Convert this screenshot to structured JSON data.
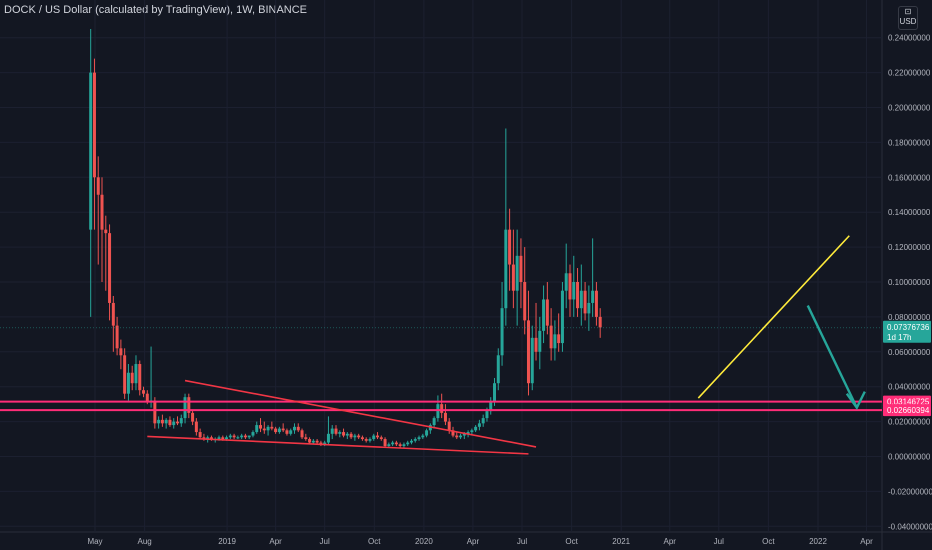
{
  "header": {
    "title": "DOCK / US Dollar (calculated by TradingView), 1W, BINANCE"
  },
  "unit": {
    "line1": "⊡",
    "line2": "USD"
  },
  "colors": {
    "background": "#131722",
    "up": "#26a69a",
    "down": "#ef5350",
    "trend_red": "#f23645",
    "trend_yellow": "#ffeb3b",
    "support_pink": "#ff2d78",
    "arrow": "#26a69a",
    "price_label": "#26a69a"
  },
  "chart_data": {
    "type": "candlestick",
    "title": "DOCK / US Dollar (calculated by TradingView), 1W, BINANCE",
    "y_axis": {
      "ticks": [
        "0.24000000",
        "0.22000000",
        "0.20000000",
        "0.18000000",
        "0.16000000",
        "0.14000000",
        "0.12000000",
        "0.10000000",
        "0.08000000",
        "0.06000000",
        "0.04000000",
        "0.02000000",
        "0.00000000",
        "-0.02000000",
        "-0.04000000"
      ],
      "ylim": [
        -0.044,
        0.266
      ]
    },
    "x_axis": {
      "ticks": [
        "May",
        "Aug",
        "2019",
        "Apr",
        "Jul",
        "Oct",
        "2020",
        "Apr",
        "Jul",
        "Oct",
        "2021",
        "Apr",
        "Jul",
        "Oct",
        "2022",
        "Apr"
      ],
      "tick_dates": [
        "2018-05-01",
        "2018-08-01",
        "2019-01-01",
        "2019-04-01",
        "2019-07-01",
        "2019-10-01",
        "2020-01-01",
        "2020-04-01",
        "2020-07-01",
        "2020-10-01",
        "2021-01-01",
        "2021-04-01",
        "2021-07-01",
        "2021-10-01",
        "2022-01-01",
        "2022-04-01"
      ]
    },
    "series": [
      {
        "type": "weekly-ohlc",
        "start": "2018-04-23",
        "candles": [
          [
            0.13,
            0.245,
            0.08,
            0.22
          ],
          [
            0.22,
            0.228,
            0.13,
            0.16
          ],
          [
            0.16,
            0.172,
            0.11,
            0.15
          ],
          [
            0.15,
            0.16,
            0.1,
            0.13
          ],
          [
            0.13,
            0.138,
            0.095,
            0.128
          ],
          [
            0.128,
            0.133,
            0.078,
            0.088
          ],
          [
            0.088,
            0.092,
            0.06,
            0.075
          ],
          [
            0.075,
            0.08,
            0.058,
            0.062
          ],
          [
            0.062,
            0.067,
            0.05,
            0.058
          ],
          [
            0.058,
            0.062,
            0.033,
            0.036
          ],
          [
            0.036,
            0.053,
            0.032,
            0.048
          ],
          [
            0.048,
            0.052,
            0.038,
            0.042
          ],
          [
            0.042,
            0.058,
            0.038,
            0.053
          ],
          [
            0.053,
            0.055,
            0.035,
            0.038
          ],
          [
            0.038,
            0.04,
            0.034,
            0.036
          ],
          [
            0.036,
            0.038,
            0.03,
            0.031
          ],
          [
            0.031,
            0.063,
            0.028,
            0.032
          ],
          [
            0.032,
            0.034,
            0.016,
            0.019
          ],
          [
            0.019,
            0.023,
            0.016,
            0.021
          ],
          [
            0.021,
            0.024,
            0.017,
            0.019
          ],
          [
            0.019,
            0.022,
            0.016,
            0.021
          ],
          [
            0.021,
            0.023,
            0.017,
            0.018
          ],
          [
            0.018,
            0.022,
            0.016,
            0.02
          ],
          [
            0.02,
            0.023,
            0.018,
            0.019
          ],
          [
            0.019,
            0.024,
            0.017,
            0.022
          ],
          [
            0.022,
            0.036,
            0.019,
            0.034
          ],
          [
            0.034,
            0.036,
            0.022,
            0.025
          ],
          [
            0.025,
            0.027,
            0.018,
            0.02
          ],
          [
            0.02,
            0.022,
            0.012,
            0.014
          ],
          [
            0.014,
            0.016,
            0.01,
            0.011
          ],
          [
            0.011,
            0.013,
            0.009,
            0.01
          ],
          [
            0.01,
            0.012,
            0.008,
            0.011
          ],
          [
            0.011,
            0.012,
            0.009,
            0.01
          ],
          [
            0.01,
            0.011,
            0.008,
            0.01
          ],
          [
            0.01,
            0.012,
            0.009,
            0.011
          ],
          [
            0.011,
            0.012,
            0.009,
            0.01
          ],
          [
            0.01,
            0.012,
            0.009,
            0.011
          ],
          [
            0.011,
            0.013,
            0.01,
            0.012
          ],
          [
            0.012,
            0.013,
            0.01,
            0.011
          ],
          [
            0.011,
            0.012,
            0.01,
            0.011
          ],
          [
            0.011,
            0.013,
            0.01,
            0.012
          ],
          [
            0.012,
            0.013,
            0.01,
            0.011
          ],
          [
            0.011,
            0.012,
            0.01,
            0.012
          ],
          [
            0.012,
            0.015,
            0.011,
            0.014
          ],
          [
            0.014,
            0.02,
            0.013,
            0.018
          ],
          [
            0.018,
            0.022,
            0.014,
            0.016
          ],
          [
            0.016,
            0.02,
            0.013,
            0.015
          ],
          [
            0.015,
            0.018,
            0.012,
            0.017
          ],
          [
            0.017,
            0.02,
            0.015,
            0.016
          ],
          [
            0.016,
            0.017,
            0.013,
            0.014
          ],
          [
            0.014,
            0.017,
            0.013,
            0.016
          ],
          [
            0.016,
            0.019,
            0.014,
            0.015
          ],
          [
            0.015,
            0.016,
            0.012,
            0.013
          ],
          [
            0.013,
            0.016,
            0.012,
            0.015
          ],
          [
            0.015,
            0.019,
            0.013,
            0.017
          ],
          [
            0.017,
            0.019,
            0.014,
            0.015
          ],
          [
            0.015,
            0.016,
            0.01,
            0.011
          ],
          [
            0.011,
            0.013,
            0.009,
            0.01
          ],
          [
            0.01,
            0.011,
            0.007,
            0.008
          ],
          [
            0.008,
            0.01,
            0.007,
            0.009
          ],
          [
            0.009,
            0.01,
            0.007,
            0.008
          ],
          [
            0.008,
            0.009,
            0.006,
            0.007
          ],
          [
            0.007,
            0.009,
            0.006,
            0.008
          ],
          [
            0.008,
            0.023,
            0.007,
            0.013
          ],
          [
            0.013,
            0.018,
            0.01,
            0.016
          ],
          [
            0.016,
            0.018,
            0.012,
            0.013
          ],
          [
            0.013,
            0.015,
            0.011,
            0.014
          ],
          [
            0.014,
            0.016,
            0.011,
            0.012
          ],
          [
            0.012,
            0.014,
            0.01,
            0.013
          ],
          [
            0.013,
            0.014,
            0.01,
            0.011
          ],
          [
            0.011,
            0.013,
            0.009,
            0.012
          ],
          [
            0.012,
            0.013,
            0.01,
            0.011
          ],
          [
            0.011,
            0.012,
            0.009,
            0.01
          ],
          [
            0.01,
            0.011,
            0.008,
            0.009
          ],
          [
            0.009,
            0.011,
            0.008,
            0.01
          ],
          [
            0.01,
            0.013,
            0.009,
            0.012
          ],
          [
            0.012,
            0.014,
            0.01,
            0.011
          ],
          [
            0.011,
            0.012,
            0.009,
            0.01
          ],
          [
            0.01,
            0.011,
            0.005,
            0.006
          ],
          [
            0.006,
            0.008,
            0.005,
            0.007
          ],
          [
            0.007,
            0.009,
            0.006,
            0.008
          ],
          [
            0.008,
            0.009,
            0.006,
            0.007
          ],
          [
            0.007,
            0.008,
            0.005,
            0.006
          ],
          [
            0.006,
            0.008,
            0.005,
            0.007
          ],
          [
            0.007,
            0.009,
            0.006,
            0.008
          ],
          [
            0.008,
            0.01,
            0.007,
            0.009
          ],
          [
            0.009,
            0.011,
            0.008,
            0.01
          ],
          [
            0.01,
            0.012,
            0.009,
            0.011
          ],
          [
            0.011,
            0.013,
            0.01,
            0.012
          ],
          [
            0.012,
            0.016,
            0.011,
            0.015
          ],
          [
            0.015,
            0.019,
            0.013,
            0.018
          ],
          [
            0.018,
            0.023,
            0.016,
            0.022
          ],
          [
            0.022,
            0.035,
            0.02,
            0.03
          ],
          [
            0.03,
            0.036,
            0.022,
            0.025
          ],
          [
            0.025,
            0.03,
            0.018,
            0.02
          ],
          [
            0.02,
            0.022,
            0.013,
            0.015
          ],
          [
            0.015,
            0.017,
            0.011,
            0.012
          ],
          [
            0.012,
            0.014,
            0.01,
            0.011
          ],
          [
            0.011,
            0.013,
            0.01,
            0.012
          ],
          [
            0.012,
            0.014,
            0.01,
            0.013
          ],
          [
            0.013,
            0.015,
            0.011,
            0.014
          ],
          [
            0.014,
            0.016,
            0.012,
            0.015
          ],
          [
            0.015,
            0.018,
            0.014,
            0.017
          ],
          [
            0.017,
            0.021,
            0.015,
            0.019
          ],
          [
            0.019,
            0.024,
            0.017,
            0.022
          ],
          [
            0.022,
            0.028,
            0.02,
            0.026
          ],
          [
            0.026,
            0.034,
            0.024,
            0.031
          ],
          [
            0.031,
            0.045,
            0.029,
            0.042
          ],
          [
            0.042,
            0.062,
            0.038,
            0.058
          ],
          [
            0.058,
            0.1,
            0.052,
            0.085
          ],
          [
            0.085,
            0.188,
            0.075,
            0.13
          ],
          [
            0.13,
            0.142,
            0.095,
            0.11
          ],
          [
            0.11,
            0.13,
            0.085,
            0.095
          ],
          [
            0.095,
            0.13,
            0.075,
            0.115
          ],
          [
            0.115,
            0.125,
            0.085,
            0.1
          ],
          [
            0.1,
            0.12,
            0.07,
            0.078
          ],
          [
            0.078,
            0.095,
            0.035,
            0.042
          ],
          [
            0.042,
            0.075,
            0.038,
            0.068
          ],
          [
            0.068,
            0.088,
            0.055,
            0.06
          ],
          [
            0.06,
            0.08,
            0.05,
            0.072
          ],
          [
            0.072,
            0.098,
            0.065,
            0.09
          ],
          [
            0.09,
            0.1,
            0.07,
            0.075
          ],
          [
            0.075,
            0.085,
            0.055,
            0.062
          ],
          [
            0.062,
            0.078,
            0.055,
            0.07
          ],
          [
            0.07,
            0.082,
            0.06,
            0.065
          ],
          [
            0.065,
            0.1,
            0.06,
            0.095
          ],
          [
            0.095,
            0.122,
            0.085,
            0.105
          ],
          [
            0.105,
            0.11,
            0.08,
            0.09
          ],
          [
            0.09,
            0.115,
            0.08,
            0.1
          ],
          [
            0.1,
            0.108,
            0.08,
            0.085
          ],
          [
            0.085,
            0.11,
            0.075,
            0.095
          ],
          [
            0.095,
            0.1,
            0.078,
            0.082
          ],
          [
            0.082,
            0.098,
            0.072,
            0.088
          ],
          [
            0.088,
            0.125,
            0.08,
            0.095
          ],
          [
            0.095,
            0.1,
            0.075,
            0.08
          ],
          [
            0.08,
            0.085,
            0.068,
            0.074
          ]
        ]
      }
    ],
    "last_price": {
      "value": 0.07376736,
      "label": "0.07376736",
      "countdown": "1d 17h"
    },
    "support_levels": [
      {
        "value": 0.03146725,
        "label": "0.03146725"
      },
      {
        "value": 0.02660394,
        "label": "0.02660394"
      }
    ],
    "trendlines": [
      {
        "color": "trend_red",
        "from": {
          "date": "2018-10-15",
          "value": 0.0435
        },
        "to": {
          "date": "2020-07-27",
          "value": 0.0055
        }
      },
      {
        "color": "trend_red",
        "from": {
          "date": "2018-08-06",
          "value": 0.0115
        },
        "to": {
          "date": "2020-07-13",
          "value": 0.0015
        }
      },
      {
        "color": "trend_yellow",
        "from": {
          "date": "2021-05-24",
          "value": 0.0335
        },
        "to": {
          "date": "2022-02-28",
          "value": 0.1265
        }
      }
    ],
    "projection_arrow": {
      "from": {
        "date": "2021-12-13",
        "value": 0.0865
      },
      "to": {
        "date": "2022-03-14",
        "value": 0.028
      }
    },
    "grid": true
  }
}
